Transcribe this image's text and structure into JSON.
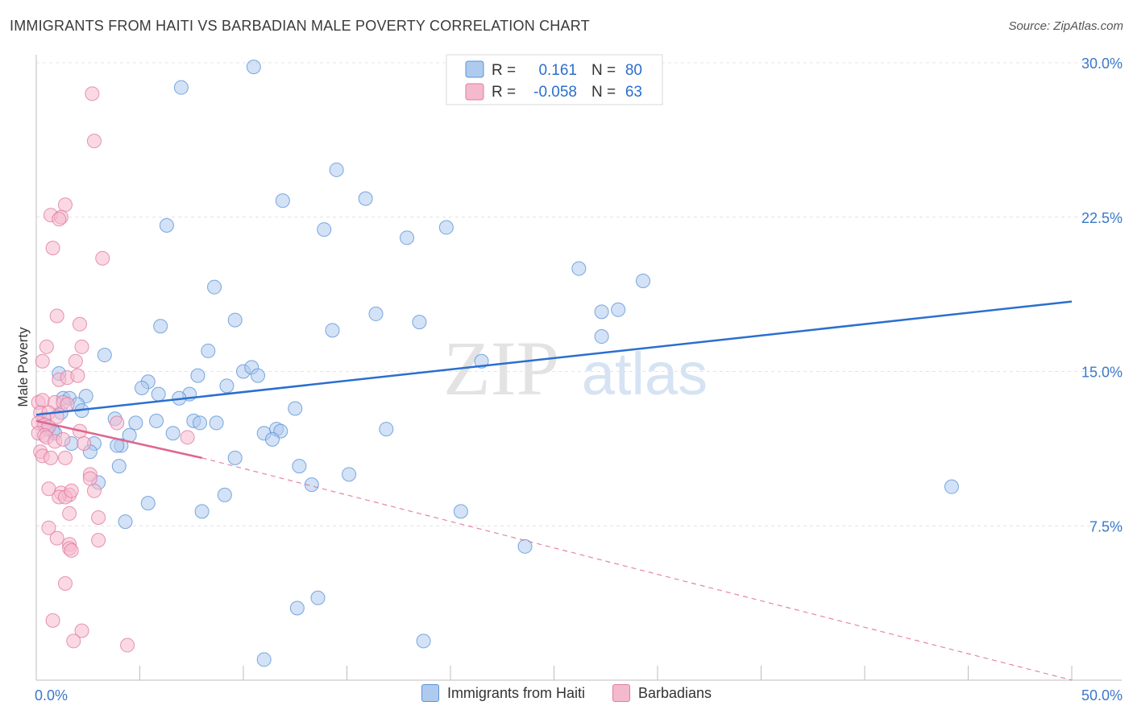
{
  "title": "IMMIGRANTS FROM HAITI VS BARBADIAN MALE POVERTY CORRELATION CHART",
  "source": "Source: ZipAtlas.com",
  "watermark": {
    "zip": "ZIP",
    "atlas": "atlas"
  },
  "colors": {
    "haiti_fill": "#aecbef",
    "haiti_stroke": "#5b93d6",
    "haiti_line": "#2a6fcf",
    "barb_fill": "#f5b9cd",
    "barb_stroke": "#e07ba0",
    "barb_line": "#e0658f",
    "grid": "#e4e4e4",
    "tick_text": "#3a78c9"
  },
  "stats_legend": [
    {
      "r_label": "R =",
      "r_value": "0.161",
      "n_label": "N =",
      "n_value": "80"
    },
    {
      "r_label": "R =",
      "r_value": "-0.058",
      "n_label": "N =",
      "n_value": "63"
    }
  ],
  "chart_data": {
    "type": "scatter",
    "title": "IMMIGRANTS FROM HAITI VS BARBADIAN MALE POVERTY CORRELATION CHART",
    "xlabel": "",
    "ylabel": "Male Poverty",
    "xlim": [
      0,
      50
    ],
    "ylim": [
      0,
      30
    ],
    "x_tick_labels": [
      "0.0%",
      "50.0%"
    ],
    "y_ticks": [
      7.5,
      15.0,
      22.5,
      30.0
    ],
    "y_tick_labels": [
      "7.5%",
      "15.0%",
      "22.5%",
      "30.0%"
    ],
    "grid": true,
    "legend": "bottom",
    "series": [
      {
        "name": "Immigrants from Haiti",
        "trend": {
          "x": [
            0,
            50
          ],
          "y": [
            12.9,
            18.4
          ]
        },
        "points": [
          [
            10.5,
            29.8
          ],
          [
            7.0,
            28.8
          ],
          [
            14.5,
            24.8
          ],
          [
            11.9,
            23.3
          ],
          [
            15.9,
            23.4
          ],
          [
            6.3,
            22.1
          ],
          [
            13.9,
            21.9
          ],
          [
            17.9,
            21.5
          ],
          [
            19.8,
            22.0
          ],
          [
            26.2,
            20.0
          ],
          [
            29.3,
            19.4
          ],
          [
            8.6,
            19.1
          ],
          [
            16.4,
            17.8
          ],
          [
            27.3,
            17.9
          ],
          [
            28.1,
            18.0
          ],
          [
            9.6,
            17.5
          ],
          [
            18.5,
            17.4
          ],
          [
            6.0,
            17.2
          ],
          [
            14.3,
            17.0
          ],
          [
            27.3,
            16.7
          ],
          [
            8.3,
            16.0
          ],
          [
            3.3,
            15.8
          ],
          [
            10.0,
            15.0
          ],
          [
            10.4,
            15.2
          ],
          [
            10.7,
            14.8
          ],
          [
            7.8,
            14.8
          ],
          [
            21.5,
            15.5
          ],
          [
            1.1,
            14.9
          ],
          [
            5.4,
            14.5
          ],
          [
            5.1,
            14.2
          ],
          [
            9.2,
            14.3
          ],
          [
            1.3,
            13.7
          ],
          [
            1.6,
            13.7
          ],
          [
            2.4,
            13.8
          ],
          [
            5.9,
            13.9
          ],
          [
            7.4,
            13.9
          ],
          [
            6.9,
            13.7
          ],
          [
            2.0,
            13.4
          ],
          [
            2.2,
            13.1
          ],
          [
            12.5,
            13.2
          ],
          [
            0.4,
            12.7
          ],
          [
            3.8,
            12.7
          ],
          [
            0.8,
            12.1
          ],
          [
            0.9,
            12.0
          ],
          [
            4.8,
            12.5
          ],
          [
            5.8,
            12.6
          ],
          [
            7.6,
            12.6
          ],
          [
            7.9,
            12.5
          ],
          [
            8.7,
            12.5
          ],
          [
            11.0,
            12.0
          ],
          [
            11.6,
            12.2
          ],
          [
            11.8,
            12.1
          ],
          [
            16.9,
            12.2
          ],
          [
            6.6,
            12.0
          ],
          [
            4.5,
            11.9
          ],
          [
            11.4,
            11.7
          ],
          [
            1.7,
            11.5
          ],
          [
            2.8,
            11.5
          ],
          [
            4.1,
            11.4
          ],
          [
            3.9,
            11.4
          ],
          [
            2.6,
            11.1
          ],
          [
            9.6,
            10.8
          ],
          [
            12.7,
            10.4
          ],
          [
            4.0,
            10.4
          ],
          [
            15.1,
            10.0
          ],
          [
            3.0,
            9.6
          ],
          [
            13.3,
            9.5
          ],
          [
            9.1,
            9.0
          ],
          [
            44.2,
            9.4
          ],
          [
            5.4,
            8.6
          ],
          [
            20.5,
            8.2
          ],
          [
            8.0,
            8.2
          ],
          [
            4.3,
            7.7
          ],
          [
            23.6,
            6.5
          ],
          [
            13.6,
            4.0
          ],
          [
            12.6,
            3.5
          ],
          [
            18.7,
            1.9
          ],
          [
            11.0,
            1.0
          ],
          [
            0.5,
            12.2
          ],
          [
            1.2,
            13.0
          ]
        ]
      },
      {
        "name": "Barbadians",
        "trend": {
          "x": [
            0,
            8.0
          ],
          "y": [
            12.6,
            10.8
          ]
        },
        "trend_extension": {
          "x": [
            8.0,
            50
          ],
          "y": [
            10.8,
            0.0
          ]
        },
        "points": [
          [
            2.7,
            28.5
          ],
          [
            2.8,
            26.2
          ],
          [
            1.4,
            23.1
          ],
          [
            0.7,
            22.6
          ],
          [
            1.2,
            22.5
          ],
          [
            1.1,
            22.4
          ],
          [
            0.8,
            21.0
          ],
          [
            3.2,
            20.5
          ],
          [
            1.0,
            17.7
          ],
          [
            2.1,
            17.3
          ],
          [
            0.5,
            16.2
          ],
          [
            2.2,
            16.2
          ],
          [
            0.3,
            15.5
          ],
          [
            1.9,
            15.5
          ],
          [
            1.1,
            14.6
          ],
          [
            1.5,
            14.7
          ],
          [
            2.0,
            14.8
          ],
          [
            0.1,
            13.5
          ],
          [
            0.3,
            13.6
          ],
          [
            0.9,
            13.5
          ],
          [
            1.3,
            13.5
          ],
          [
            1.5,
            13.4
          ],
          [
            0.2,
            13.0
          ],
          [
            0.6,
            13.0
          ],
          [
            1.0,
            12.8
          ],
          [
            0.1,
            12.5
          ],
          [
            0.4,
            12.4
          ],
          [
            0.6,
            12.3
          ],
          [
            0.1,
            12.0
          ],
          [
            0.4,
            11.9
          ],
          [
            0.5,
            11.8
          ],
          [
            0.9,
            11.6
          ],
          [
            1.3,
            11.7
          ],
          [
            2.1,
            12.1
          ],
          [
            3.9,
            12.5
          ],
          [
            7.3,
            11.8
          ],
          [
            0.2,
            11.1
          ],
          [
            0.3,
            10.9
          ],
          [
            0.7,
            10.8
          ],
          [
            1.4,
            10.8
          ],
          [
            2.3,
            11.5
          ],
          [
            2.6,
            10.0
          ],
          [
            0.6,
            9.3
          ],
          [
            1.2,
            9.1
          ],
          [
            1.6,
            9.0
          ],
          [
            1.1,
            8.9
          ],
          [
            1.4,
            8.9
          ],
          [
            1.7,
            9.2
          ],
          [
            2.8,
            9.2
          ],
          [
            1.6,
            8.1
          ],
          [
            3.0,
            7.9
          ],
          [
            0.6,
            7.4
          ],
          [
            1.0,
            6.9
          ],
          [
            3.0,
            6.8
          ],
          [
            1.6,
            6.6
          ],
          [
            1.6,
            6.4
          ],
          [
            1.7,
            6.3
          ],
          [
            1.4,
            4.7
          ],
          [
            0.8,
            2.9
          ],
          [
            2.2,
            2.4
          ],
          [
            1.8,
            1.9
          ],
          [
            4.4,
            1.7
          ],
          [
            2.6,
            9.8
          ]
        ]
      }
    ]
  }
}
